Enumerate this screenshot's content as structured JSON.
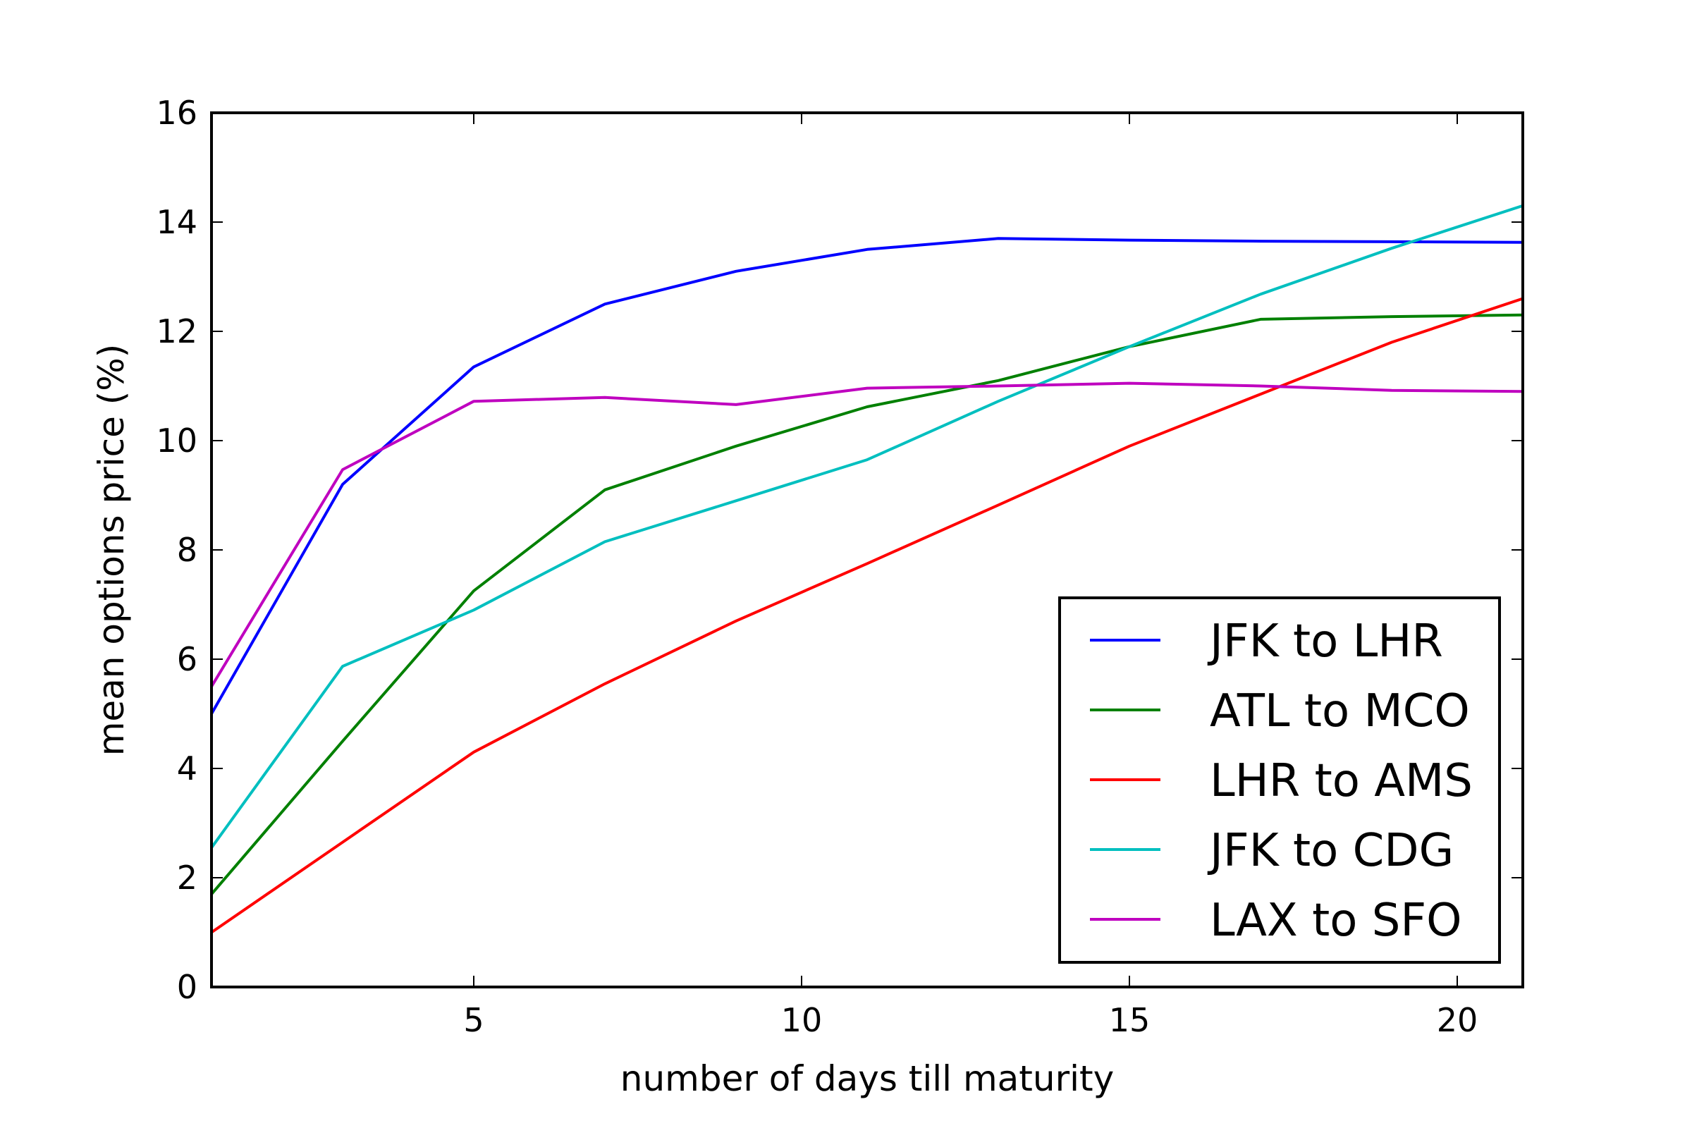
{
  "chart_data": {
    "type": "line",
    "title": "",
    "xlabel": "number of days till maturity",
    "ylabel": "mean options price (%)",
    "xlim": [
      1,
      21
    ],
    "ylim": [
      0,
      16
    ],
    "xticks": [
      5,
      10,
      15,
      20
    ],
    "yticks": [
      0,
      2,
      4,
      6,
      8,
      10,
      12,
      14,
      16
    ],
    "grid": false,
    "legend_position": "lower-right",
    "x": [
      1,
      3,
      5,
      7,
      9,
      11,
      13,
      15,
      17,
      19,
      21
    ],
    "series": [
      {
        "name": "JFK to LHR",
        "color": "#0000ff",
        "values": [
          5.0,
          9.2,
          11.35,
          12.5,
          13.1,
          13.5,
          13.7,
          13.67,
          13.65,
          13.64,
          13.63
        ]
      },
      {
        "name": "ATL to MCO",
        "color": "#008000",
        "values": [
          1.7,
          4.5,
          7.25,
          9.1,
          9.9,
          10.62,
          11.1,
          11.72,
          12.22,
          12.27,
          12.3
        ]
      },
      {
        "name": "LHR to AMS",
        "color": "#ff0000",
        "values": [
          1.0,
          2.65,
          4.3,
          5.55,
          6.7,
          7.75,
          8.82,
          9.9,
          10.85,
          11.8,
          12.6
        ]
      },
      {
        "name": "JFK to CDG",
        "color": "#00bfbf",
        "values": [
          2.55,
          5.87,
          6.9,
          8.15,
          8.9,
          9.65,
          10.72,
          11.72,
          12.68,
          13.52,
          14.3
        ]
      },
      {
        "name": "LAX to SFO",
        "color": "#bf00bf",
        "values": [
          5.5,
          9.47,
          10.72,
          10.79,
          10.66,
          10.96,
          11.0,
          11.05,
          11.0,
          10.92,
          10.9
        ]
      }
    ]
  }
}
